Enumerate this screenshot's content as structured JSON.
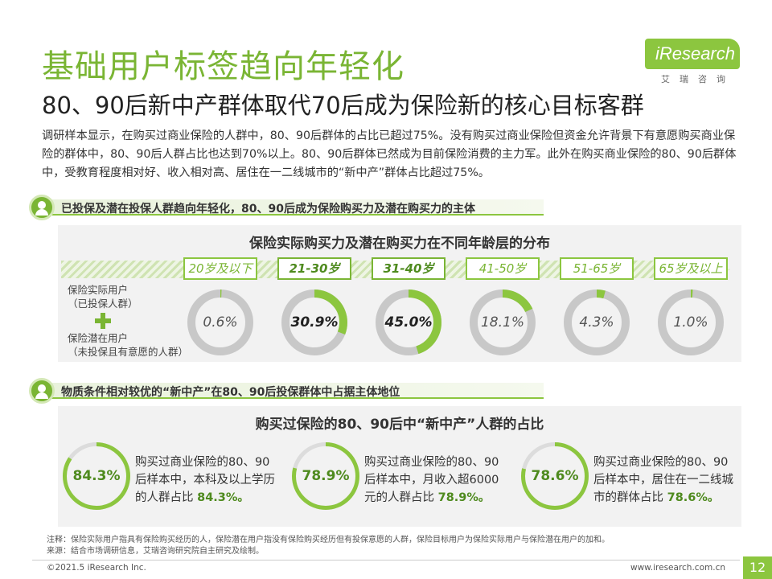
{
  "header": {
    "title": "基础用户标签趋向年轻化",
    "subtitle": "80、90后新中产群体取代70后成为保险新的核心目标客群",
    "logo_text": "iResearch",
    "logo_cn": "艾瑞咨询"
  },
  "intro": "调研样本显示，在购买过商业保险的人群中，80、90后群体的占比已超过75%。没有购买过商业保险但资金允许背景下有意愿购买商业保险的群体中，80、90后人群占比也达到70%以上。80、90后群体已然成为目前保险消费的主力军。此外在购买商业保险的80、90后群体中，受教育程度相对好、收入相对高、居住在一二线城市的“新中产”群体占比超过75%。",
  "section1": {
    "label": "已投保及潜在投保人群趋向年轻化，80、90后成为保险购买力及潜在购买力的主体",
    "panel_title": "保险实际购买力及潜在购买力在不同年龄层的分布",
    "legend_actual": "保险实际用户",
    "legend_actual_sub": "（已投保人群）",
    "legend_potential": "保险潜在用户",
    "legend_potential_sub": "（未投保且有意愿的人群）"
  },
  "section2": {
    "label": "物质条件相对较优的“新中产”在80、90后投保群体中占据主体地位",
    "panel_title": "购买过保险的80、90后中“新中产”人群的占比",
    "cards": [
      {
        "value": "84.3%",
        "text": "购买过商业保险的80、90后样本中，本科及以上学历的人群占比",
        "highlight": "84.3%。"
      },
      {
        "value": "78.9%",
        "text": "购买过商业保险的80、90后样本中，月收入超6000元的人群占比",
        "highlight": "78.9%。"
      },
      {
        "value": "78.6%",
        "text": "购买过商业保险的80、90后样本中，居住在一二线城市的群体占比",
        "highlight": "78.6%。"
      }
    ]
  },
  "chart_data": [
    {
      "type": "pie",
      "title": "保险实际购买力及潜在购买力在不同年龄层的分布",
      "categories": [
        "20岁及以下",
        "21-30岁",
        "31-40岁",
        "41-50岁",
        "51-65岁",
        "65岁及以上"
      ],
      "values": [
        0.6,
        30.9,
        45.0,
        18.1,
        4.3,
        1.0
      ],
      "labels": [
        "0.6%",
        "30.9%",
        "45.0%",
        "18.1%",
        "4.3%",
        "1.0%"
      ],
      "unit": "%"
    },
    {
      "type": "pie",
      "title": "购买过保险的80、90后中“新中产”人群的占比",
      "categories": [
        "本科及以上学历",
        "月收入超6000元",
        "居住在一二线城市"
      ],
      "values": [
        84.3,
        78.9,
        78.6
      ],
      "unit": "%"
    }
  ],
  "colors": {
    "accent": "#8cc63f",
    "accent_dark": "#7ab534",
    "ring_gray": "#c8c8c8"
  },
  "footer": {
    "note": "注释：保险实际用户指具有保险购买经历的人，保险潜在用户指没有保险购买经历但有投保意愿的人群，保险目标用户为保险实际用户与保险潜在用户的加和。",
    "source": "来源：结合市场调研信息，艾瑞咨询研究院自主研究及绘制。",
    "copyright": "©2021.5 iResearch Inc.",
    "website": "www.iresearch.com.cn",
    "page": "12"
  }
}
